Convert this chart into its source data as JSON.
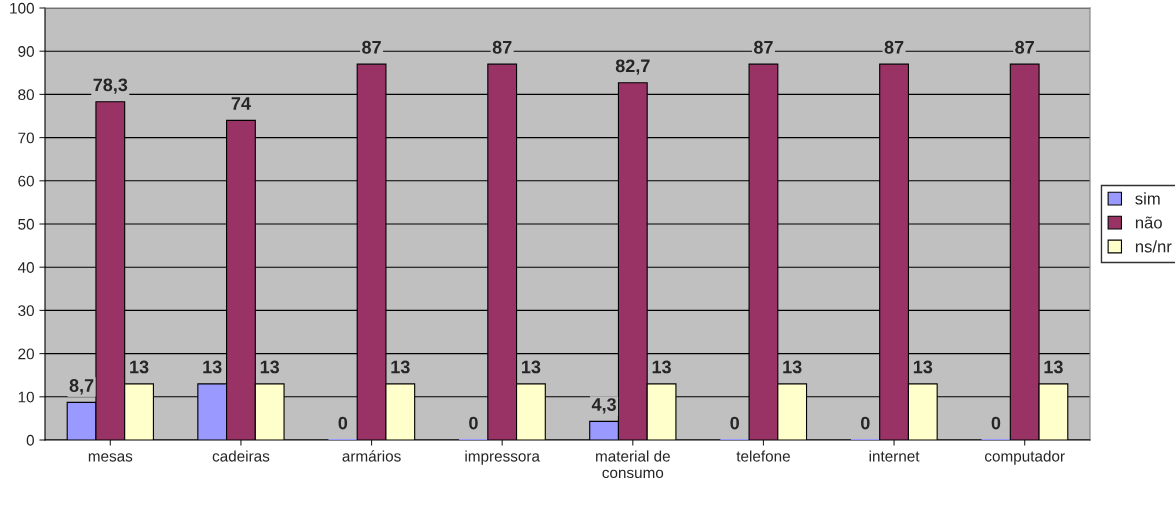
{
  "chart_data": {
    "type": "bar",
    "categories": [
      "mesas",
      "cadeiras",
      "armários",
      "impressora",
      "material de\nconsumo",
      "telefone",
      "internet",
      "computador"
    ],
    "series": [
      {
        "name": "sim",
        "color": "#9999ff",
        "values": [
          8.7,
          13,
          0,
          0,
          4.3,
          0,
          0,
          0
        ],
        "value_labels": [
          "8,7",
          "13",
          "0",
          "0",
          "4,3",
          "0",
          "0",
          "0"
        ]
      },
      {
        "name": "não",
        "color": "#993366",
        "values": [
          78.3,
          74,
          87,
          87,
          82.7,
          87,
          87,
          87
        ],
        "value_labels": [
          "78,3",
          "74",
          "87",
          "87",
          "82,7",
          "87",
          "87",
          "87"
        ]
      },
      {
        "name": "ns/nr",
        "color": "#ffffcc",
        "values": [
          13,
          13,
          13,
          13,
          13,
          13,
          13,
          13
        ],
        "value_labels": [
          "13",
          "13",
          "13",
          "13",
          "13",
          "13",
          "13",
          "13"
        ]
      }
    ],
    "ylim": [
      0,
      100
    ],
    "yticks": [
      0,
      10,
      20,
      30,
      40,
      50,
      60,
      70,
      80,
      90,
      100
    ],
    "grid": "y",
    "legend": "right"
  }
}
